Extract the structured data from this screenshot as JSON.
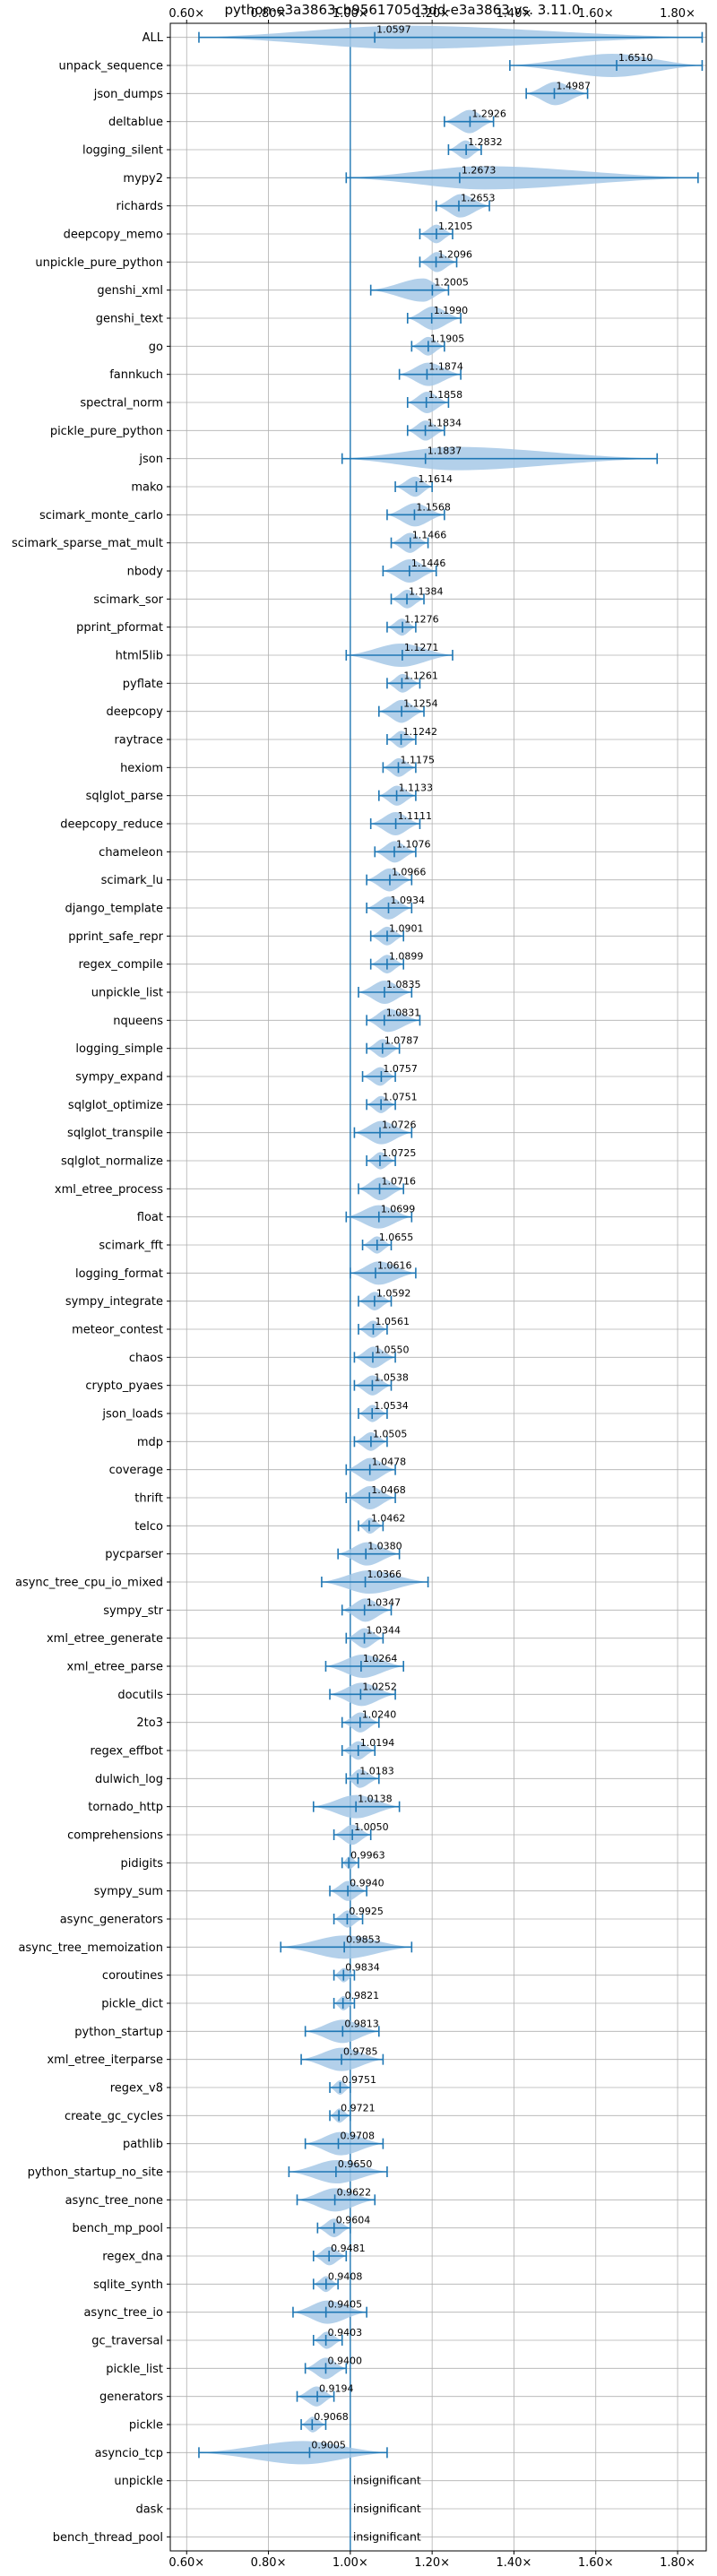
{
  "chart_data": {
    "type": "violin",
    "title": "python-e3a3863cb9561705d3dd-e3a3863 vs. 3.11.0",
    "xlim": [
      0.56,
      1.87
    ],
    "xticks": [
      0.6,
      0.8,
      1.0,
      1.2,
      1.4,
      1.6,
      1.8
    ],
    "xtick_labels": [
      "0.60×",
      "0.80×",
      "1.00×",
      "1.20×",
      "1.40×",
      "1.60×",
      "1.80×"
    ],
    "grid": true,
    "reference_line": 1.0,
    "colors": {
      "violin": "#a6c8e6",
      "line": "#1f77b4",
      "grid": "#b0b0b0"
    },
    "benchmarks": [
      {
        "name": "ALL",
        "value": 1.0597,
        "label": "1.0597",
        "min": 0.63,
        "max": 1.86
      },
      {
        "name": "unpack_sequence",
        "value": 1.651,
        "label": "1.6510",
        "min": 1.39,
        "max": 1.86
      },
      {
        "name": "json_dumps",
        "value": 1.4987,
        "label": "1.4987",
        "min": 1.43,
        "max": 1.58
      },
      {
        "name": "deltablue",
        "value": 1.2926,
        "label": "1.2926",
        "min": 1.23,
        "max": 1.35
      },
      {
        "name": "logging_silent",
        "value": 1.2832,
        "label": "1.2832",
        "min": 1.24,
        "max": 1.32
      },
      {
        "name": "mypy2",
        "value": 1.2673,
        "label": "1.2673",
        "min": 0.99,
        "max": 1.85
      },
      {
        "name": "richards",
        "value": 1.2653,
        "label": "1.2653",
        "min": 1.21,
        "max": 1.34
      },
      {
        "name": "deepcopy_memo",
        "value": 1.2105,
        "label": "1.2105",
        "min": 1.17,
        "max": 1.25
      },
      {
        "name": "unpickle_pure_python",
        "value": 1.2096,
        "label": "1.2096",
        "min": 1.17,
        "max": 1.26
      },
      {
        "name": "genshi_xml",
        "value": 1.2005,
        "label": "1.2005",
        "min": 1.05,
        "max": 1.24
      },
      {
        "name": "genshi_text",
        "value": 1.199,
        "label": "1.1990",
        "min": 1.14,
        "max": 1.27
      },
      {
        "name": "go",
        "value": 1.1905,
        "label": "1.1905",
        "min": 1.15,
        "max": 1.23
      },
      {
        "name": "fannkuch",
        "value": 1.1874,
        "label": "1.1874",
        "min": 1.12,
        "max": 1.27
      },
      {
        "name": "spectral_norm",
        "value": 1.1858,
        "label": "1.1858",
        "min": 1.14,
        "max": 1.24
      },
      {
        "name": "pickle_pure_python",
        "value": 1.1834,
        "label": "1.1834",
        "min": 1.14,
        "max": 1.23
      },
      {
        "name": "json",
        "value": 1.1837,
        "label": "1.1837",
        "min": 0.98,
        "max": 1.75
      },
      {
        "name": "mako",
        "value": 1.1614,
        "label": "1.1614",
        "min": 1.11,
        "max": 1.2
      },
      {
        "name": "scimark_monte_carlo",
        "value": 1.1568,
        "label": "1.1568",
        "min": 1.09,
        "max": 1.23
      },
      {
        "name": "scimark_sparse_mat_mult",
        "value": 1.1466,
        "label": "1.1466",
        "min": 1.1,
        "max": 1.19
      },
      {
        "name": "nbody",
        "value": 1.1446,
        "label": "1.1446",
        "min": 1.08,
        "max": 1.21
      },
      {
        "name": "scimark_sor",
        "value": 1.1384,
        "label": "1.1384",
        "min": 1.1,
        "max": 1.18
      },
      {
        "name": "pprint_pformat",
        "value": 1.1276,
        "label": "1.1276",
        "min": 1.09,
        "max": 1.16
      },
      {
        "name": "html5lib",
        "value": 1.1271,
        "label": "1.1271",
        "min": 0.99,
        "max": 1.25
      },
      {
        "name": "pyflate",
        "value": 1.1261,
        "label": "1.1261",
        "min": 1.09,
        "max": 1.17
      },
      {
        "name": "deepcopy",
        "value": 1.1254,
        "label": "1.1254",
        "min": 1.07,
        "max": 1.18
      },
      {
        "name": "raytrace",
        "value": 1.1242,
        "label": "1.1242",
        "min": 1.09,
        "max": 1.16
      },
      {
        "name": "hexiom",
        "value": 1.1175,
        "label": "1.1175",
        "min": 1.08,
        "max": 1.16
      },
      {
        "name": "sqlglot_parse",
        "value": 1.1133,
        "label": "1.1133",
        "min": 1.07,
        "max": 1.16
      },
      {
        "name": "deepcopy_reduce",
        "value": 1.1111,
        "label": "1.1111",
        "min": 1.05,
        "max": 1.17
      },
      {
        "name": "chameleon",
        "value": 1.1076,
        "label": "1.1076",
        "min": 1.06,
        "max": 1.16
      },
      {
        "name": "scimark_lu",
        "value": 1.0966,
        "label": "1.0966",
        "min": 1.04,
        "max": 1.15
      },
      {
        "name": "django_template",
        "value": 1.0934,
        "label": "1.0934",
        "min": 1.04,
        "max": 1.15
      },
      {
        "name": "pprint_safe_repr",
        "value": 1.0901,
        "label": "1.0901",
        "min": 1.05,
        "max": 1.13
      },
      {
        "name": "regex_compile",
        "value": 1.0899,
        "label": "1.0899",
        "min": 1.05,
        "max": 1.13
      },
      {
        "name": "unpickle_list",
        "value": 1.0835,
        "label": "1.0835",
        "min": 1.02,
        "max": 1.15
      },
      {
        "name": "nqueens",
        "value": 1.0831,
        "label": "1.0831",
        "min": 1.04,
        "max": 1.17
      },
      {
        "name": "logging_simple",
        "value": 1.0787,
        "label": "1.0787",
        "min": 1.04,
        "max": 1.12
      },
      {
        "name": "sympy_expand",
        "value": 1.0757,
        "label": "1.0757",
        "min": 1.03,
        "max": 1.11
      },
      {
        "name": "sqlglot_optimize",
        "value": 1.0751,
        "label": "1.0751",
        "min": 1.04,
        "max": 1.11
      },
      {
        "name": "sqlglot_transpile",
        "value": 1.0726,
        "label": "1.0726",
        "min": 1.01,
        "max": 1.15
      },
      {
        "name": "sqlglot_normalize",
        "value": 1.0725,
        "label": "1.0725",
        "min": 1.04,
        "max": 1.11
      },
      {
        "name": "xml_etree_process",
        "value": 1.0716,
        "label": "1.0716",
        "min": 1.02,
        "max": 1.13
      },
      {
        "name": "float",
        "value": 1.0699,
        "label": "1.0699",
        "min": 0.99,
        "max": 1.15
      },
      {
        "name": "scimark_fft",
        "value": 1.0655,
        "label": "1.0655",
        "min": 1.03,
        "max": 1.1
      },
      {
        "name": "logging_format",
        "value": 1.0616,
        "label": "1.0616",
        "min": 1.0,
        "max": 1.16
      },
      {
        "name": "sympy_integrate",
        "value": 1.0592,
        "label": "1.0592",
        "min": 1.02,
        "max": 1.1
      },
      {
        "name": "meteor_contest",
        "value": 1.0561,
        "label": "1.0561",
        "min": 1.02,
        "max": 1.09
      },
      {
        "name": "chaos",
        "value": 1.055,
        "label": "1.0550",
        "min": 1.01,
        "max": 1.11
      },
      {
        "name": "crypto_pyaes",
        "value": 1.0538,
        "label": "1.0538",
        "min": 1.01,
        "max": 1.1
      },
      {
        "name": "json_loads",
        "value": 1.0534,
        "label": "1.0534",
        "min": 1.02,
        "max": 1.09
      },
      {
        "name": "mdp",
        "value": 1.0505,
        "label": "1.0505",
        "min": 1.01,
        "max": 1.09
      },
      {
        "name": "coverage",
        "value": 1.0478,
        "label": "1.0478",
        "min": 0.99,
        "max": 1.11
      },
      {
        "name": "thrift",
        "value": 1.0468,
        "label": "1.0468",
        "min": 0.99,
        "max": 1.11
      },
      {
        "name": "telco",
        "value": 1.0462,
        "label": "1.0462",
        "min": 1.02,
        "max": 1.08
      },
      {
        "name": "pycparser",
        "value": 1.038,
        "label": "1.0380",
        "min": 0.97,
        "max": 1.12
      },
      {
        "name": "async_tree_cpu_io_mixed",
        "value": 1.0366,
        "label": "1.0366",
        "min": 0.93,
        "max": 1.19
      },
      {
        "name": "sympy_str",
        "value": 1.0347,
        "label": "1.0347",
        "min": 0.98,
        "max": 1.1
      },
      {
        "name": "xml_etree_generate",
        "value": 1.0344,
        "label": "1.0344",
        "min": 0.99,
        "max": 1.08
      },
      {
        "name": "xml_etree_parse",
        "value": 1.0264,
        "label": "1.0264",
        "min": 0.94,
        "max": 1.13
      },
      {
        "name": "docutils",
        "value": 1.0252,
        "label": "1.0252",
        "min": 0.95,
        "max": 1.11
      },
      {
        "name": "2to3",
        "value": 1.024,
        "label": "1.0240",
        "min": 0.98,
        "max": 1.07
      },
      {
        "name": "regex_effbot",
        "value": 1.0194,
        "label": "1.0194",
        "min": 0.98,
        "max": 1.06
      },
      {
        "name": "dulwich_log",
        "value": 1.0183,
        "label": "1.0183",
        "min": 0.99,
        "max": 1.07
      },
      {
        "name": "tornado_http",
        "value": 1.0138,
        "label": "1.0138",
        "min": 0.91,
        "max": 1.12
      },
      {
        "name": "comprehensions",
        "value": 1.005,
        "label": "1.0050",
        "min": 0.96,
        "max": 1.05
      },
      {
        "name": "pidigits",
        "value": 0.9963,
        "label": "0.9963",
        "min": 0.98,
        "max": 1.02
      },
      {
        "name": "sympy_sum",
        "value": 0.994,
        "label": "0.9940",
        "min": 0.95,
        "max": 1.04
      },
      {
        "name": "async_generators",
        "value": 0.9925,
        "label": "0.9925",
        "min": 0.96,
        "max": 1.03
      },
      {
        "name": "async_tree_memoization",
        "value": 0.9853,
        "label": "0.9853",
        "min": 0.83,
        "max": 1.15
      },
      {
        "name": "coroutines",
        "value": 0.9834,
        "label": "0.9834",
        "min": 0.96,
        "max": 1.01
      },
      {
        "name": "pickle_dict",
        "value": 0.9821,
        "label": "0.9821",
        "min": 0.96,
        "max": 1.01
      },
      {
        "name": "python_startup",
        "value": 0.9813,
        "label": "0.9813",
        "min": 0.89,
        "max": 1.07
      },
      {
        "name": "xml_etree_iterparse",
        "value": 0.9785,
        "label": "0.9785",
        "min": 0.88,
        "max": 1.08
      },
      {
        "name": "regex_v8",
        "value": 0.9751,
        "label": "0.9751",
        "min": 0.95,
        "max": 1.0
      },
      {
        "name": "create_gc_cycles",
        "value": 0.9721,
        "label": "0.9721",
        "min": 0.95,
        "max": 1.0
      },
      {
        "name": "pathlib",
        "value": 0.9708,
        "label": "0.9708",
        "min": 0.89,
        "max": 1.08
      },
      {
        "name": "python_startup_no_site",
        "value": 0.965,
        "label": "0.9650",
        "min": 0.85,
        "max": 1.09
      },
      {
        "name": "async_tree_none",
        "value": 0.9622,
        "label": "0.9622",
        "min": 0.87,
        "max": 1.06
      },
      {
        "name": "bench_mp_pool",
        "value": 0.9604,
        "label": "0.9604",
        "min": 0.92,
        "max": 1.0
      },
      {
        "name": "regex_dna",
        "value": 0.9481,
        "label": "0.9481",
        "min": 0.91,
        "max": 0.99
      },
      {
        "name": "sqlite_synth",
        "value": 0.9408,
        "label": "0.9408",
        "min": 0.91,
        "max": 0.97
      },
      {
        "name": "async_tree_io",
        "value": 0.9405,
        "label": "0.9405",
        "min": 0.86,
        "max": 1.04
      },
      {
        "name": "gc_traversal",
        "value": 0.9403,
        "label": "0.9403",
        "min": 0.91,
        "max": 0.98
      },
      {
        "name": "pickle_list",
        "value": 0.94,
        "label": "0.9400",
        "min": 0.89,
        "max": 0.99
      },
      {
        "name": "generators",
        "value": 0.9194,
        "label": "0.9194",
        "min": 0.87,
        "max": 0.96
      },
      {
        "name": "pickle",
        "value": 0.9068,
        "label": "0.9068",
        "min": 0.88,
        "max": 0.94
      },
      {
        "name": "asyncio_tcp",
        "value": 0.9005,
        "label": "0.9005",
        "min": 0.63,
        "max": 1.09
      },
      {
        "name": "unpickle",
        "value": null,
        "label": "insignificant"
      },
      {
        "name": "dask",
        "value": null,
        "label": "insignificant"
      },
      {
        "name": "bench_thread_pool",
        "value": null,
        "label": "insignificant"
      }
    ]
  }
}
